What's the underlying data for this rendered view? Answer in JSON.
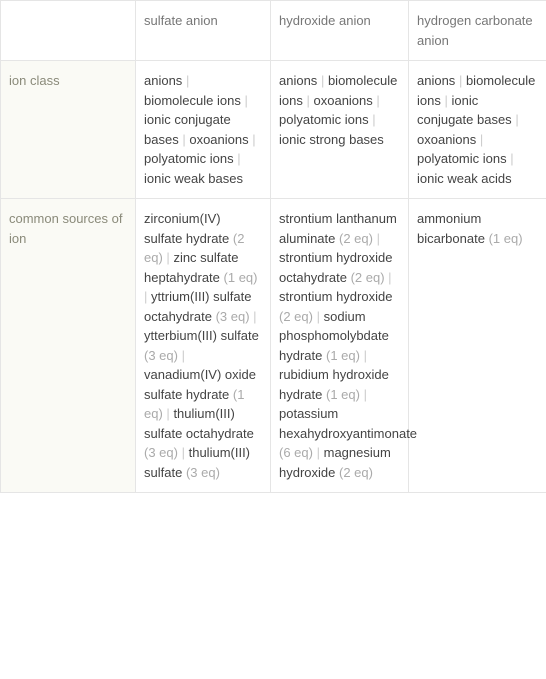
{
  "columns": [
    "",
    "sulfate anion",
    "hydroxide anion",
    "hydrogen carbonate anion"
  ],
  "rows": [
    {
      "label": "ion class",
      "cells": [
        [
          {
            "t": "anions"
          },
          {
            "t": "biomolecule ions"
          },
          {
            "t": "ionic conjugate bases"
          },
          {
            "t": "oxoanions"
          },
          {
            "t": "polyatomic ions"
          },
          {
            "t": "ionic weak bases"
          }
        ],
        [
          {
            "t": "anions"
          },
          {
            "t": "biomolecule ions"
          },
          {
            "t": "oxoanions"
          },
          {
            "t": "polyatomic ions"
          },
          {
            "t": "ionic strong bases"
          }
        ],
        [
          {
            "t": "anions"
          },
          {
            "t": "biomolecule ions"
          },
          {
            "t": "ionic conjugate bases"
          },
          {
            "t": "oxoanions"
          },
          {
            "t": "polyatomic ions"
          },
          {
            "t": "ionic weak acids"
          }
        ]
      ]
    },
    {
      "label": "common sources of ion",
      "cells": [
        [
          {
            "t": "zirconium(IV) sulfate hydrate",
            "q": "(2 eq)"
          },
          {
            "t": "zinc sulfate heptahydrate",
            "q": "(1 eq)"
          },
          {
            "t": "yttrium(III) sulfate octahydrate",
            "q": "(3 eq)"
          },
          {
            "t": "ytterbium(III) sulfate",
            "q": "(3 eq)"
          },
          {
            "t": "vanadium(IV) oxide sulfate hydrate",
            "q": "(1 eq)"
          },
          {
            "t": "thulium(III) sulfate octahydrate",
            "q": "(3 eq)"
          },
          {
            "t": "thulium(III) sulfate",
            "q": "(3 eq)"
          }
        ],
        [
          {
            "t": "strontium lanthanum aluminate",
            "q": "(2 eq)"
          },
          {
            "t": "strontium hydroxide octahydrate",
            "q": "(2 eq)"
          },
          {
            "t": "strontium hydroxide",
            "q": "(2 eq)"
          },
          {
            "t": "sodium phosphomolybdate hydrate",
            "q": "(1 eq)"
          },
          {
            "t": "rubidium hydroxide hydrate",
            "q": "(1 eq)"
          },
          {
            "t": "potassium hexahydroxyantimonate",
            "q": "(6 eq)"
          },
          {
            "t": "magnesium hydroxide",
            "q": "(2 eq)"
          }
        ],
        [
          {
            "t": "ammonium bicarbonate",
            "q": "(1 eq)"
          }
        ]
      ]
    }
  ],
  "sep": "|"
}
